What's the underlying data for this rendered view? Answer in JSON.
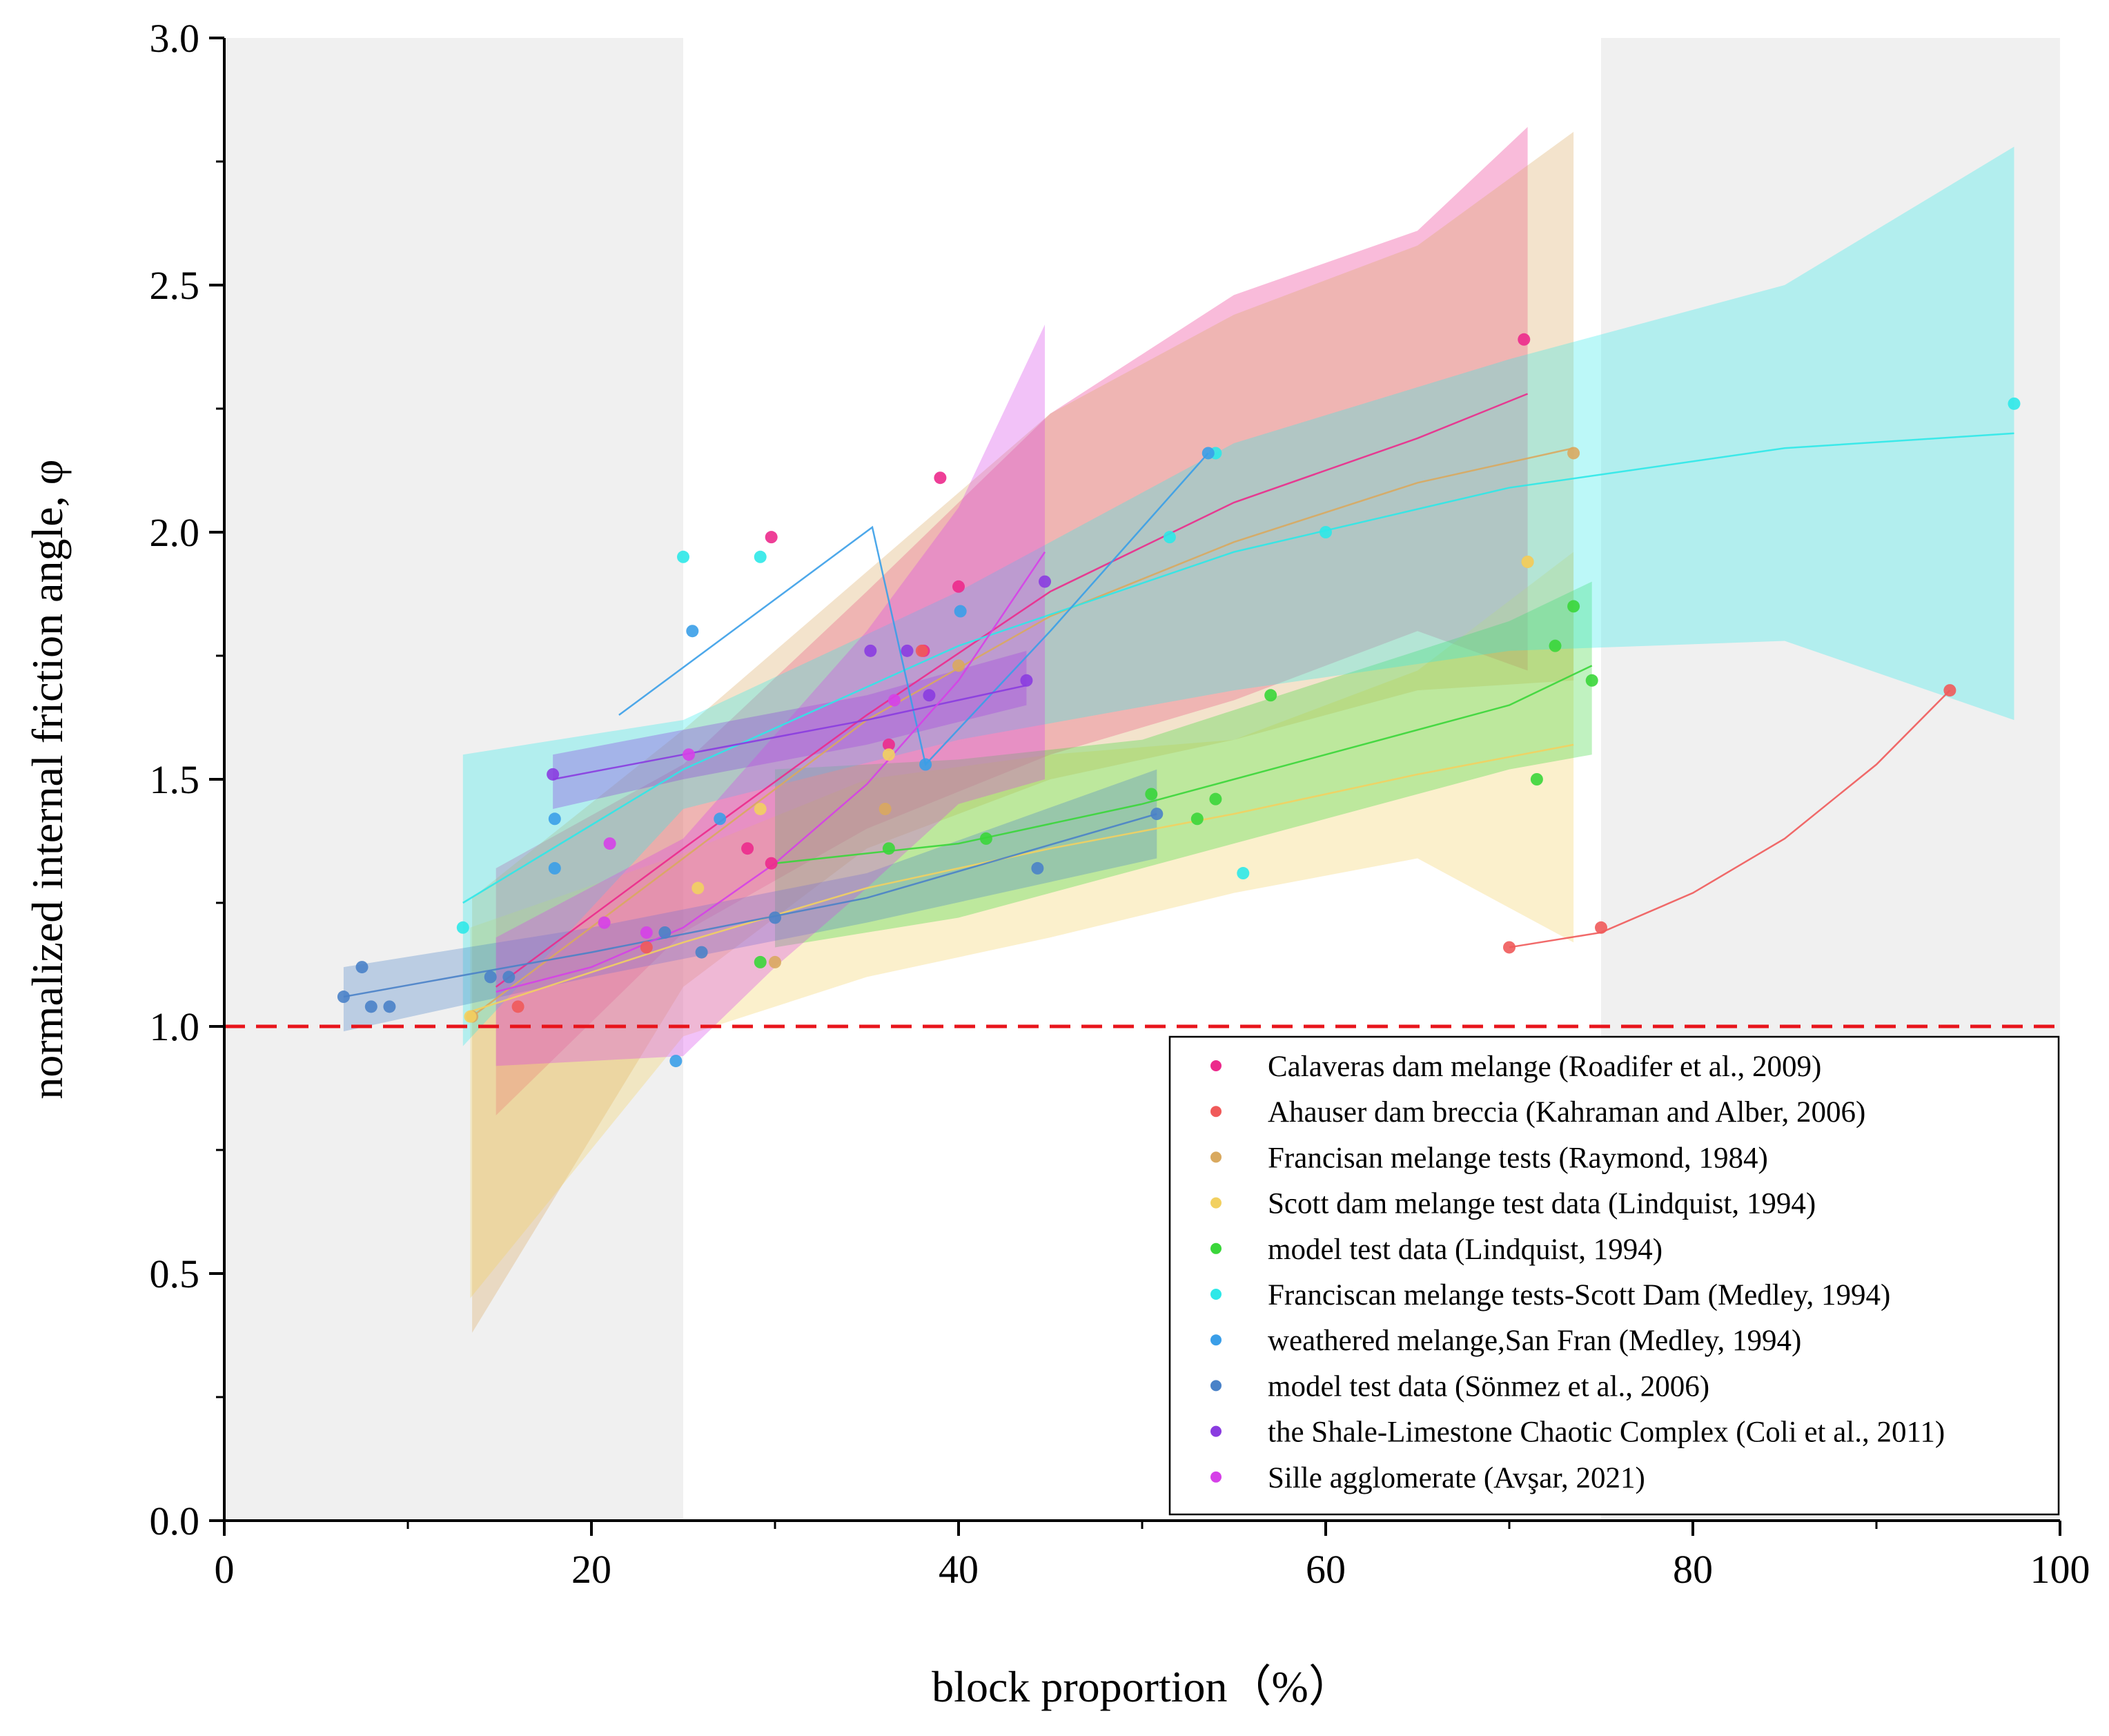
{
  "chart_data": {
    "type": "scatter",
    "xlabel": "block proportion（%）",
    "ylabel": "normalized internal friction angle, φ",
    "xlim": [
      0,
      100
    ],
    "ylim": [
      0.0,
      3.0
    ],
    "x_ticks": [
      "0",
      "20",
      "40",
      "60",
      "80",
      "100"
    ],
    "y_ticks": [
      "0.0",
      "0.5",
      "1.0",
      "1.5",
      "2.0",
      "2.5",
      "3.0"
    ],
    "reference_line": {
      "y": 1.0,
      "color": "#e8141b",
      "style": "dashed"
    },
    "shaded_regions": [
      {
        "x": [
          0,
          25
        ]
      },
      {
        "x": [
          75,
          100
        ]
      }
    ],
    "legend_position": "bottom-right",
    "series": [
      {
        "name": "Calaveras dam melange (Roadifer et al., 2009)",
        "color": "#ec2a8c",
        "points": [
          [
            29.8,
            1.99
          ],
          [
            39.0,
            2.11
          ],
          [
            70.8,
            2.39
          ],
          [
            36.2,
            1.57
          ],
          [
            38.1,
            1.76
          ],
          [
            29.8,
            1.33
          ],
          [
            40.0,
            1.89
          ],
          [
            28.5,
            1.36
          ]
        ],
        "fit": [
          [
            14.8,
            1.08
          ],
          [
            25,
            1.36
          ],
          [
            35,
            1.63
          ],
          [
            45,
            1.88
          ],
          [
            55,
            2.06
          ],
          [
            65,
            2.19
          ],
          [
            71,
            2.28
          ]
        ],
        "band_upper": [
          [
            14.8,
            1.32
          ],
          [
            25,
            1.53
          ],
          [
            35,
            1.88
          ],
          [
            45,
            2.24
          ],
          [
            55,
            2.48
          ],
          [
            65,
            2.61
          ],
          [
            71,
            2.82
          ]
        ],
        "band_lower": [
          [
            14.8,
            0.82
          ],
          [
            25,
            1.19
          ],
          [
            35,
            1.4
          ],
          [
            45,
            1.55
          ],
          [
            55,
            1.66
          ],
          [
            65,
            1.8
          ],
          [
            71,
            1.72
          ]
        ]
      },
      {
        "name": "Ahauser dam breccia (Kahraman and Alber, 2006)",
        "color": "#f05a5a",
        "points": [
          [
            70.0,
            1.16
          ],
          [
            75.0,
            1.2
          ],
          [
            94.0,
            1.68
          ],
          [
            16.0,
            1.04
          ],
          [
            23.0,
            1.16
          ],
          [
            38.0,
            1.76
          ]
        ],
        "fit": [
          [
            70.0,
            1.16
          ],
          [
            75.0,
            1.19
          ],
          [
            80,
            1.27
          ],
          [
            85,
            1.38
          ],
          [
            90,
            1.53
          ],
          [
            94.0,
            1.68
          ]
        ]
      },
      {
        "name": "Francisan melange tests (Raymond, 1984)",
        "color": "#d9a95f",
        "points": [
          [
            73.5,
            2.16
          ],
          [
            36.0,
            1.44
          ],
          [
            13.5,
            1.02
          ],
          [
            30.0,
            1.13
          ],
          [
            71.0,
            1.94
          ],
          [
            40.0,
            1.73
          ]
        ],
        "fit": [
          [
            13.5,
            1.02
          ],
          [
            25,
            1.34
          ],
          [
            35,
            1.62
          ],
          [
            45,
            1.83
          ],
          [
            55,
            1.98
          ],
          [
            65,
            2.1
          ],
          [
            73.5,
            2.17
          ]
        ],
        "band_upper": [
          [
            13.5,
            1.26
          ],
          [
            25,
            1.6
          ],
          [
            35,
            1.92
          ],
          [
            45,
            2.24
          ],
          [
            55,
            2.44
          ],
          [
            65,
            2.58
          ],
          [
            73.5,
            2.81
          ]
        ],
        "band_lower": [
          [
            13.5,
            0.38
          ],
          [
            25,
            1.08
          ],
          [
            35,
            1.36
          ],
          [
            45,
            1.5
          ],
          [
            55,
            1.58
          ],
          [
            65,
            1.68
          ],
          [
            73.5,
            1.7
          ]
        ]
      },
      {
        "name": "Scott dam melange test data (Lindquist, 1994)",
        "color": "#f2d060",
        "points": [
          [
            13.4,
            1.02
          ],
          [
            29.2,
            1.44
          ],
          [
            71.0,
            1.94
          ],
          [
            36.2,
            1.55
          ],
          [
            25.8,
            1.28
          ]
        ],
        "fit": [
          [
            13.4,
            1.03
          ],
          [
            25,
            1.17
          ],
          [
            35,
            1.28
          ],
          [
            45,
            1.36
          ],
          [
            55,
            1.43
          ],
          [
            65,
            1.51
          ],
          [
            73.5,
            1.57
          ]
        ],
        "band_upper": [
          [
            13.4,
            1.2
          ],
          [
            25,
            1.35
          ],
          [
            35,
            1.5
          ],
          [
            45,
            1.55
          ],
          [
            55,
            1.58
          ],
          [
            65,
            1.72
          ],
          [
            73.5,
            1.96
          ]
        ],
        "band_lower": [
          [
            13.4,
            0.45
          ],
          [
            25,
            0.98
          ],
          [
            35,
            1.1
          ],
          [
            45,
            1.18
          ],
          [
            55,
            1.27
          ],
          [
            65,
            1.34
          ],
          [
            73.5,
            1.17
          ]
        ]
      },
      {
        "name": "model test data (Lindquist, 1994)",
        "color": "#3ad63a",
        "points": [
          [
            29.2,
            1.13
          ],
          [
            50.5,
            1.47
          ],
          [
            53.0,
            1.42
          ],
          [
            54.0,
            1.46
          ],
          [
            57.0,
            1.67
          ],
          [
            71.5,
            1.5
          ],
          [
            72.5,
            1.77
          ],
          [
            73.5,
            1.85
          ],
          [
            74.5,
            1.7
          ],
          [
            41.5,
            1.38
          ],
          [
            36.2,
            1.36
          ]
        ],
        "fit": [
          [
            30,
            1.33
          ],
          [
            40,
            1.37
          ],
          [
            50,
            1.45
          ],
          [
            60,
            1.55
          ],
          [
            70,
            1.65
          ],
          [
            74.5,
            1.73
          ]
        ],
        "band_upper": [
          [
            30,
            1.52
          ],
          [
            40,
            1.54
          ],
          [
            50,
            1.58
          ],
          [
            60,
            1.7
          ],
          [
            70,
            1.82
          ],
          [
            74.5,
            1.9
          ]
        ],
        "band_lower": [
          [
            30,
            1.16
          ],
          [
            40,
            1.22
          ],
          [
            50,
            1.32
          ],
          [
            60,
            1.42
          ],
          [
            70,
            1.52
          ],
          [
            74.5,
            1.55
          ]
        ]
      },
      {
        "name": "Franciscan melange tests-Scott Dam (Medley, 1994)",
        "color": "#2ee8e8",
        "points": [
          [
            13.0,
            1.2
          ],
          [
            25.0,
            1.95
          ],
          [
            29.2,
            1.95
          ],
          [
            51.5,
            1.99
          ],
          [
            54.0,
            2.16
          ],
          [
            55.5,
            1.31
          ],
          [
            97.5,
            2.26
          ],
          [
            60.0,
            2.0
          ]
        ],
        "fit": [
          [
            13.0,
            1.25
          ],
          [
            25,
            1.52
          ],
          [
            40,
            1.77
          ],
          [
            55,
            1.96
          ],
          [
            70,
            2.09
          ],
          [
            85,
            2.17
          ],
          [
            97.5,
            2.2
          ]
        ],
        "band_upper": [
          [
            13.0,
            1.55
          ],
          [
            25,
            1.62
          ],
          [
            40,
            1.88
          ],
          [
            55,
            2.18
          ],
          [
            70,
            2.35
          ],
          [
            85,
            2.5
          ],
          [
            97.5,
            2.78
          ]
        ],
        "band_lower": [
          [
            13.0,
            0.96
          ],
          [
            25,
            1.44
          ],
          [
            40,
            1.58
          ],
          [
            55,
            1.68
          ],
          [
            70,
            1.76
          ],
          [
            85,
            1.78
          ],
          [
            97.5,
            1.62
          ]
        ]
      },
      {
        "name": "weathered melange,San Fran (Medley, 1994)",
        "color": "#3a9ee8",
        "points": [
          [
            25.5,
            1.8
          ],
          [
            24.6,
            0.93
          ],
          [
            38.2,
            1.53
          ],
          [
            40.1,
            1.84
          ],
          [
            53.6,
            2.16
          ],
          [
            18.0,
            1.42
          ],
          [
            18.0,
            1.32
          ],
          [
            27.0,
            1.42
          ]
        ],
        "fit": [
          [
            21.5,
            1.63
          ],
          [
            35.3,
            2.01
          ],
          [
            38.2,
            1.53
          ],
          [
            45,
            1.8
          ],
          [
            53.6,
            2.16
          ]
        ]
      },
      {
        "name": "model test data (Sönmez et al., 2006)",
        "color": "#4a82c8",
        "points": [
          [
            6.5,
            1.06
          ],
          [
            7.5,
            1.12
          ],
          [
            8.0,
            1.04
          ],
          [
            9.0,
            1.04
          ],
          [
            14.5,
            1.1
          ],
          [
            15.5,
            1.1
          ],
          [
            24.0,
            1.19
          ],
          [
            26.0,
            1.15
          ],
          [
            30.0,
            1.22
          ],
          [
            44.3,
            1.32
          ],
          [
            50.8,
            1.43
          ]
        ],
        "fit": [
          [
            6.5,
            1.06
          ],
          [
            20,
            1.15
          ],
          [
            35,
            1.26
          ],
          [
            50.8,
            1.43
          ]
        ],
        "band_upper": [
          [
            6.5,
            1.12
          ],
          [
            20,
            1.2
          ],
          [
            35,
            1.31
          ],
          [
            50.8,
            1.52
          ]
        ],
        "band_lower": [
          [
            6.5,
            0.99
          ],
          [
            20,
            1.1
          ],
          [
            35,
            1.21
          ],
          [
            50.8,
            1.34
          ]
        ]
      },
      {
        "name": "the Shale-Limestone Chaotic Complex (Coli et al., 2011)",
        "color": "#8a3ce0",
        "points": [
          [
            17.9,
            1.51
          ],
          [
            35.2,
            1.76
          ],
          [
            37.2,
            1.76
          ],
          [
            43.7,
            1.7
          ],
          [
            38.4,
            1.67
          ],
          [
            44.7,
            1.9
          ]
        ],
        "fit": [
          [
            17.9,
            1.5
          ],
          [
            25,
            1.55
          ],
          [
            35,
            1.62
          ],
          [
            43.7,
            1.69
          ]
        ],
        "band_upper": [
          [
            17.9,
            1.55
          ],
          [
            25,
            1.6
          ],
          [
            35,
            1.67
          ],
          [
            43.7,
            1.76
          ]
        ],
        "band_lower": [
          [
            17.9,
            1.44
          ],
          [
            25,
            1.5
          ],
          [
            35,
            1.57
          ],
          [
            43.7,
            1.65
          ]
        ]
      },
      {
        "name": "Sille agglomerate (Avşar, 2021)",
        "color": "#d640e8",
        "points": [
          [
            25.3,
            1.55
          ],
          [
            21.0,
            1.37
          ],
          [
            23.0,
            1.19
          ],
          [
            20.7,
            1.21
          ],
          [
            36.5,
            1.66
          ]
        ],
        "fit": [
          [
            14.8,
            1.07
          ],
          [
            20,
            1.12
          ],
          [
            25,
            1.2
          ],
          [
            30,
            1.33
          ],
          [
            35,
            1.49
          ],
          [
            40,
            1.7
          ],
          [
            44.7,
            1.96
          ]
        ],
        "band_upper": [
          [
            14.8,
            1.18
          ],
          [
            25,
            1.38
          ],
          [
            35,
            1.8
          ],
          [
            40,
            2.05
          ],
          [
            44.7,
            2.42
          ]
        ],
        "band_lower": [
          [
            14.8,
            0.92
          ],
          [
            25,
            0.94
          ],
          [
            30,
            1.12
          ],
          [
            35,
            1.28
          ],
          [
            40,
            1.45
          ],
          [
            44.7,
            1.5
          ]
        ]
      }
    ]
  }
}
